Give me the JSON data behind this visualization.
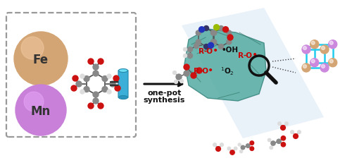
{
  "bg_color": "#ffffff",
  "fe_color": "#D4A574",
  "fe_label": "Fe",
  "mn_color": "#C880D8",
  "mn_label": "Mn",
  "arrow_text_line1": "one-pot",
  "arrow_text_line2": "synthesis",
  "radical_color": "#CC0000",
  "light_blue_panel": "#C8DCF0",
  "light_blue_alpha": 0.4,
  "teal_color": "#5AADA8",
  "cube_edge_color": "#22BBDD",
  "cube_node_fe_color": "#D4A574",
  "cube_node_mn_color": "#CC88DD",
  "mol_red": "#CC1111",
  "mol_gray": "#888888",
  "mol_blue": "#1133CC",
  "mol_green": "#88BB00"
}
